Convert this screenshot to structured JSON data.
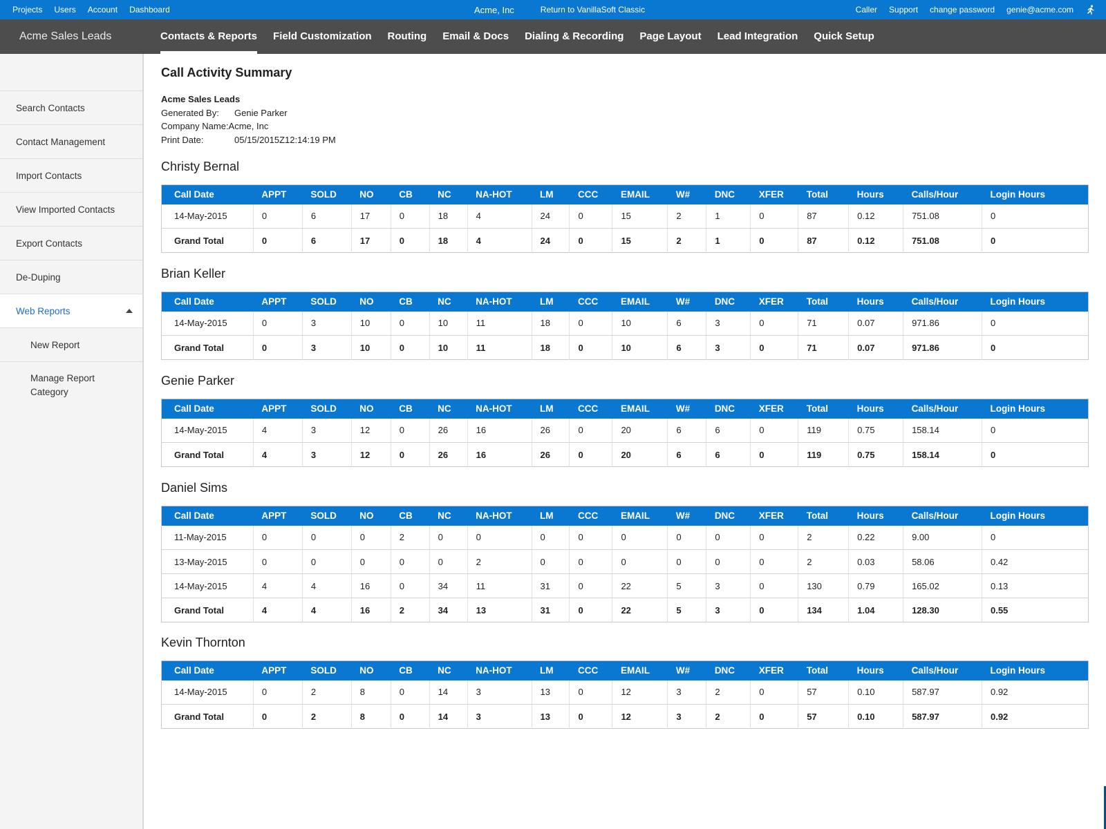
{
  "topbar": {
    "links_left": [
      "Projects",
      "Users",
      "Account",
      "Dashboard"
    ],
    "company": "Acme, Inc",
    "return_link": "Return to VanillaSoft Classic",
    "links_right": [
      "Caller",
      "Support",
      "change password",
      "genie@acme.com"
    ],
    "runner_icon": "runner-icon"
  },
  "nav": {
    "brand": "Acme Sales Leads",
    "items": [
      "Contacts & Reports",
      "Field Customization",
      "Routing",
      "Email & Docs",
      "Dialing & Recording",
      "Page Layout",
      "Lead Integration",
      "Quick Setup"
    ],
    "active_index": 0
  },
  "sidebar": {
    "items": [
      "Search Contacts",
      "Contact Management",
      "Import Contacts",
      "View Imported Contacts",
      "Export Contacts",
      "De-Duping",
      "Web Reports"
    ],
    "active": "Web Reports",
    "subitems": [
      "New Report",
      "Manage Report Category"
    ]
  },
  "report": {
    "title": "Call Activity Summary",
    "org": "Acme Sales Leads",
    "generated_by_label": "Generated By:",
    "generated_by": "Genie Parker",
    "company_label": "Company Name:",
    "company": "Acme, Inc",
    "print_date_label": "Print Date:",
    "print_date": "05/15/2015Z12:14:19 PM",
    "columns": [
      "Call Date",
      "APPT",
      "SOLD",
      "NO",
      "CB",
      "NC",
      "NA-HOT",
      "LM",
      "CCC",
      "EMAIL",
      "W#",
      "DNC",
      "XFER",
      "Total",
      "Hours",
      "Calls/Hour",
      "Login Hours"
    ],
    "sections": [
      {
        "name": "Christy Bernal",
        "rows": [
          [
            "14-May-2015",
            "0",
            "6",
            "17",
            "0",
            "18",
            "4",
            "24",
            "0",
            "15",
            "2",
            "1",
            "0",
            "87",
            "0.12",
            "751.08",
            "0"
          ],
          [
            "Grand Total",
            "0",
            "6",
            "17",
            "0",
            "18",
            "4",
            "24",
            "0",
            "15",
            "2",
            "1",
            "0",
            "87",
            "0.12",
            "751.08",
            "0"
          ]
        ]
      },
      {
        "name": "Brian Keller",
        "rows": [
          [
            "14-May-2015",
            "0",
            "3",
            "10",
            "0",
            "10",
            "11",
            "18",
            "0",
            "10",
            "6",
            "3",
            "0",
            "71",
            "0.07",
            "971.86",
            "0"
          ],
          [
            "Grand Total",
            "0",
            "3",
            "10",
            "0",
            "10",
            "11",
            "18",
            "0",
            "10",
            "6",
            "3",
            "0",
            "71",
            "0.07",
            "971.86",
            "0"
          ]
        ]
      },
      {
        "name": "Genie Parker",
        "rows": [
          [
            "14-May-2015",
            "4",
            "3",
            "12",
            "0",
            "26",
            "16",
            "26",
            "0",
            "20",
            "6",
            "6",
            "0",
            "119",
            "0.75",
            "158.14",
            "0"
          ],
          [
            "Grand Total",
            "4",
            "3",
            "12",
            "0",
            "26",
            "16",
            "26",
            "0",
            "20",
            "6",
            "6",
            "0",
            "119",
            "0.75",
            "158.14",
            "0"
          ]
        ]
      },
      {
        "name": "Daniel Sims",
        "rows": [
          [
            "11-May-2015",
            "0",
            "0",
            "0",
            "2",
            "0",
            "0",
            "0",
            "0",
            "0",
            "0",
            "0",
            "0",
            "2",
            "0.22",
            "9.00",
            "0"
          ],
          [
            "13-May-2015",
            "0",
            "0",
            "0",
            "0",
            "0",
            "2",
            "0",
            "0",
            "0",
            "0",
            "0",
            "0",
            "2",
            "0.03",
            "58.06",
            "0.42"
          ],
          [
            "14-May-2015",
            "4",
            "4",
            "16",
            "0",
            "34",
            "11",
            "31",
            "0",
            "22",
            "5",
            "3",
            "0",
            "130",
            "0.79",
            "165.02",
            "0.13"
          ],
          [
            "Grand Total",
            "4",
            "4",
            "16",
            "2",
            "34",
            "13",
            "31",
            "0",
            "22",
            "5",
            "3",
            "0",
            "134",
            "1.04",
            "128.30",
            "0.55"
          ]
        ]
      },
      {
        "name": "Kevin Thornton",
        "rows": [
          [
            "14-May-2015",
            "0",
            "2",
            "8",
            "0",
            "14",
            "3",
            "13",
            "0",
            "12",
            "3",
            "2",
            "0",
            "57",
            "0.10",
            "587.97",
            "0.92"
          ],
          [
            "Grand Total",
            "0",
            "2",
            "8",
            "0",
            "14",
            "3",
            "13",
            "0",
            "12",
            "3",
            "2",
            "0",
            "57",
            "0.10",
            "587.97",
            "0.92"
          ]
        ]
      }
    ]
  }
}
